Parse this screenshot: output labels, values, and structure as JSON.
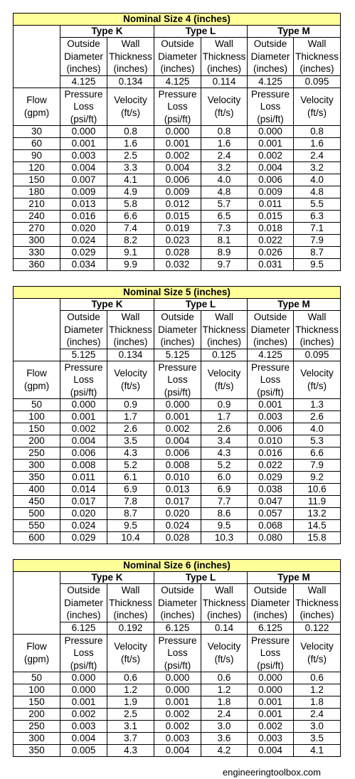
{
  "labels": {
    "type_k": "Type K",
    "type_l": "Type L",
    "type_m": "Type M",
    "outside_diameter": [
      "Outside",
      "Diameter",
      "(inches)"
    ],
    "wall_thickness": [
      "Wall",
      "Thickness",
      "(inches)"
    ],
    "flow": [
      "Flow",
      "(gpm)"
    ],
    "pressure_loss": [
      "Pressure",
      "Loss",
      "(psi/ft)"
    ],
    "velocity": [
      "Velocity",
      "(ft/s)"
    ]
  },
  "tables": [
    {
      "title": "Nominal Size 4 (inches)",
      "dims": [
        "4.125",
        "0.134",
        "4.125",
        "0.114",
        "4.125",
        "0.095"
      ],
      "rows": [
        [
          "30",
          "0.000",
          "0.8",
          "0.000",
          "0.8",
          "0.000",
          "0.8"
        ],
        [
          "60",
          "0.001",
          "1.6",
          "0.001",
          "1.6",
          "0.001",
          "1.6"
        ],
        [
          "90",
          "0.003",
          "2.5",
          "0.002",
          "2.4",
          "0.002",
          "2.4"
        ],
        [
          "120",
          "0.004",
          "3.3",
          "0.004",
          "3.2",
          "0.004",
          "3.2"
        ],
        [
          "150",
          "0.007",
          "4.1",
          "0.006",
          "4.0",
          "0.006",
          "4.0"
        ],
        [
          "180",
          "0.009",
          "4.9",
          "0.009",
          "4.8",
          "0.009",
          "4.8"
        ],
        [
          "210",
          "0.013",
          "5.8",
          "0.012",
          "5.7",
          "0.011",
          "5.5"
        ],
        [
          "240",
          "0.016",
          "6.6",
          "0.015",
          "6.5",
          "0.015",
          "6.3"
        ],
        [
          "270",
          "0.020",
          "7.4",
          "0.019",
          "7.3",
          "0.018",
          "7.1"
        ],
        [
          "300",
          "0.024",
          "8.2",
          "0.023",
          "8.1",
          "0.022",
          "7.9"
        ],
        [
          "330",
          "0.029",
          "9.1",
          "0.028",
          "8.9",
          "0.026",
          "8.7"
        ],
        [
          "360",
          "0.034",
          "9.9",
          "0.032",
          "9.7",
          "0.031",
          "9.5"
        ]
      ]
    },
    {
      "title": "Nominal Size 5 (inches)",
      "dims": [
        "5.125",
        "0.134",
        "5.125",
        "0.125",
        "4.125",
        "0.095"
      ],
      "rows": [
        [
          "50",
          "0.000",
          "0.9",
          "0.000",
          "0.9",
          "0.001",
          "1.3"
        ],
        [
          "100",
          "0.001",
          "1.7",
          "0.001",
          "1.7",
          "0.003",
          "2.6"
        ],
        [
          "150",
          "0.002",
          "2.6",
          "0.002",
          "2.6",
          "0.006",
          "4.0"
        ],
        [
          "200",
          "0.004",
          "3.5",
          "0.004",
          "3.4",
          "0.010",
          "5.3"
        ],
        [
          "250",
          "0.006",
          "4.3",
          "0.006",
          "4.3",
          "0.016",
          "6.6"
        ],
        [
          "300",
          "0.008",
          "5.2",
          "0.008",
          "5.2",
          "0.022",
          "7.9"
        ],
        [
          "350",
          "0.011",
          "6.1",
          "0.010",
          "6.0",
          "0.029",
          "9.2"
        ],
        [
          "400",
          "0.014",
          "6.9",
          "0.013",
          "6.9",
          "0.038",
          "10.6"
        ],
        [
          "450",
          "0.017",
          "7.8",
          "0.017",
          "7.7",
          "0.047",
          "11.9"
        ],
        [
          "500",
          "0.020",
          "8.7",
          "0.020",
          "8.6",
          "0.057",
          "13.2"
        ],
        [
          "550",
          "0.024",
          "9.5",
          "0.024",
          "9.5",
          "0.068",
          "14.5"
        ],
        [
          "600",
          "0.029",
          "10.4",
          "0.028",
          "10.3",
          "0.080",
          "15.8"
        ]
      ]
    },
    {
      "title": "Nominal Size 6 (inches)",
      "dims": [
        "6.125",
        "0.192",
        "6.125",
        "0.14",
        "6.125",
        "0.122"
      ],
      "rows": [
        [
          "50",
          "0.000",
          "0.6",
          "0.000",
          "0.6",
          "0.000",
          "0.6"
        ],
        [
          "100",
          "0.000",
          "1.2",
          "0.000",
          "1.2",
          "0.000",
          "1.2"
        ],
        [
          "150",
          "0.001",
          "1.9",
          "0.001",
          "1.8",
          "0.001",
          "1.8"
        ],
        [
          "200",
          "0.002",
          "2.5",
          "0.002",
          "2.4",
          "0.001",
          "2.4"
        ],
        [
          "250",
          "0.003",
          "3.1",
          "0.002",
          "3.0",
          "0.002",
          "3.0"
        ],
        [
          "300",
          "0.004",
          "3.7",
          "0.003",
          "3.6",
          "0.003",
          "3.5"
        ],
        [
          "350",
          "0.005",
          "4.3",
          "0.004",
          "4.2",
          "0.004",
          "4.1"
        ]
      ]
    }
  ],
  "footer": "engineeringtoolbox.com"
}
